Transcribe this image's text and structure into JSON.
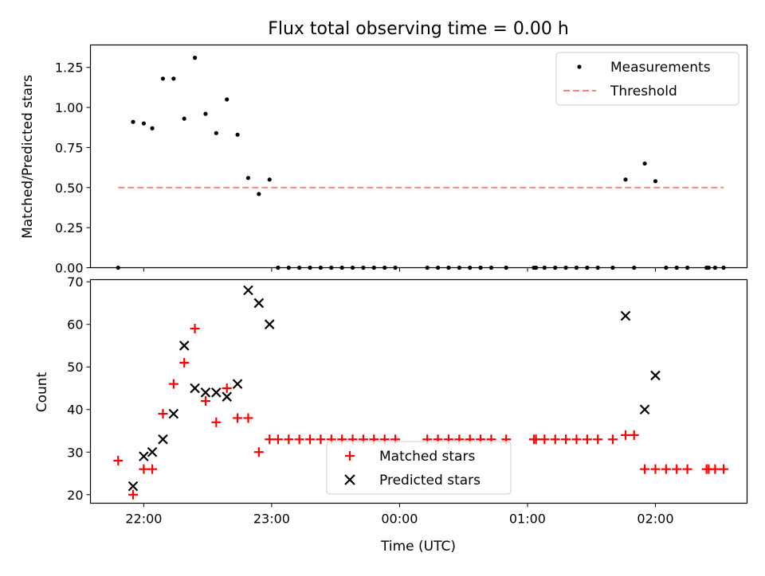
{
  "chart_data": [
    {
      "type": "scatter",
      "title": "Flux total observing time = 0.00 h",
      "xlabel": "",
      "ylabel": "Matched/Predicted stars",
      "xlim": [
        "21:35",
        "02:43"
      ],
      "ylim": [
        0,
        1.39
      ],
      "yticks": [
        "0.00",
        "0.25",
        "0.50",
        "0.75",
        "1.00",
        "1.25"
      ],
      "ytick_values": [
        0,
        0.25,
        0.5,
        0.75,
        1.0,
        1.25
      ],
      "xtick_values": [
        "22:00",
        "23:00",
        "00:00",
        "01:00",
        "02:00"
      ],
      "legend": "top-right",
      "series": [
        {
          "name": "Measurements",
          "marker": "dot",
          "color": "#000000",
          "points": [
            [
              "21:48",
              0.0
            ],
            [
              "21:55",
              0.91
            ],
            [
              "22:00",
              0.9
            ],
            [
              "22:04",
              0.87
            ],
            [
              "22:09",
              1.18
            ],
            [
              "22:14",
              1.18
            ],
            [
              "22:19",
              0.93
            ],
            [
              "22:24",
              1.31
            ],
            [
              "22:29",
              0.96
            ],
            [
              "22:34",
              0.84
            ],
            [
              "22:39",
              1.05
            ],
            [
              "22:44",
              0.83
            ],
            [
              "22:49",
              0.56
            ],
            [
              "22:54",
              0.46
            ],
            [
              "22:59",
              0.55
            ],
            [
              "23:03",
              0.0
            ],
            [
              "23:08",
              0.0
            ],
            [
              "23:13",
              0.0
            ],
            [
              "23:18",
              0.0
            ],
            [
              "23:23",
              0.0
            ],
            [
              "23:28",
              0.0
            ],
            [
              "23:33",
              0.0
            ],
            [
              "23:38",
              0.0
            ],
            [
              "23:43",
              0.0
            ],
            [
              "23:48",
              0.0
            ],
            [
              "23:53",
              0.0
            ],
            [
              "23:58",
              0.0
            ],
            [
              "00:13",
              0.0
            ],
            [
              "00:18",
              0.0
            ],
            [
              "00:23",
              0.0
            ],
            [
              "00:28",
              0.0
            ],
            [
              "00:33",
              0.0
            ],
            [
              "00:38",
              0.0
            ],
            [
              "00:43",
              0.0
            ],
            [
              "00:50",
              0.0
            ],
            [
              "01:03",
              0.0
            ],
            [
              "01:04",
              0.0
            ],
            [
              "01:08",
              0.0
            ],
            [
              "01:13",
              0.0
            ],
            [
              "01:18",
              0.0
            ],
            [
              "01:23",
              0.0
            ],
            [
              "01:28",
              0.0
            ],
            [
              "01:33",
              0.0
            ],
            [
              "01:40",
              0.0
            ],
            [
              "01:46",
              0.55
            ],
            [
              "01:50",
              0.0
            ],
            [
              "01:55",
              0.65
            ],
            [
              "02:00",
              0.54
            ],
            [
              "02:05",
              0.0
            ],
            [
              "02:10",
              0.0
            ],
            [
              "02:15",
              0.0
            ],
            [
              "02:24",
              0.0
            ],
            [
              "02:25",
              0.0
            ],
            [
              "02:28",
              0.0
            ],
            [
              "02:32",
              0.0
            ]
          ]
        },
        {
          "name": "Threshold",
          "marker": "dashed-line",
          "color": "#ff7f7f",
          "points": [
            [
              "21:48",
              0.5
            ],
            [
              "02:32",
              0.5
            ]
          ]
        }
      ]
    },
    {
      "type": "scatter",
      "title": "",
      "xlabel": "Time (UTC)",
      "ylabel": "Count",
      "xlim": [
        "21:35",
        "02:43"
      ],
      "ylim": [
        18,
        70.5
      ],
      "yticks": [
        "20",
        "30",
        "40",
        "50",
        "60",
        "70"
      ],
      "ytick_values": [
        20,
        30,
        40,
        50,
        60,
        70
      ],
      "xticks": [
        "22:00",
        "23:00",
        "00:00",
        "01:00",
        "02:00"
      ],
      "xtick_values": [
        "22:00",
        "23:00",
        "00:00",
        "01:00",
        "02:00"
      ],
      "legend": "bottom-center",
      "series": [
        {
          "name": "Matched stars",
          "marker": "plus",
          "color": "#ff0000",
          "points": [
            [
              "21:48",
              28
            ],
            [
              "21:55",
              20
            ],
            [
              "22:00",
              26
            ],
            [
              "22:04",
              26
            ],
            [
              "22:09",
              39
            ],
            [
              "22:14",
              46
            ],
            [
              "22:19",
              51
            ],
            [
              "22:24",
              59
            ],
            [
              "22:29",
              42
            ],
            [
              "22:34",
              37
            ],
            [
              "22:39",
              45
            ],
            [
              "22:44",
              38
            ],
            [
              "22:49",
              38
            ],
            [
              "22:54",
              30
            ],
            [
              "22:59",
              33
            ],
            [
              "23:03",
              33
            ],
            [
              "23:08",
              33
            ],
            [
              "23:13",
              33
            ],
            [
              "23:18",
              33
            ],
            [
              "23:23",
              33
            ],
            [
              "23:28",
              33
            ],
            [
              "23:33",
              33
            ],
            [
              "23:38",
              33
            ],
            [
              "23:43",
              33
            ],
            [
              "23:48",
              33
            ],
            [
              "23:53",
              33
            ],
            [
              "23:58",
              33
            ],
            [
              "00:13",
              33
            ],
            [
              "00:18",
              33
            ],
            [
              "00:23",
              33
            ],
            [
              "00:28",
              33
            ],
            [
              "00:33",
              33
            ],
            [
              "00:38",
              33
            ],
            [
              "00:43",
              33
            ],
            [
              "00:50",
              33
            ],
            [
              "01:03",
              33
            ],
            [
              "01:04",
              33
            ],
            [
              "01:08",
              33
            ],
            [
              "01:13",
              33
            ],
            [
              "01:18",
              33
            ],
            [
              "01:23",
              33
            ],
            [
              "01:28",
              33
            ],
            [
              "01:33",
              33
            ],
            [
              "01:40",
              33
            ],
            [
              "01:46",
              34
            ],
            [
              "01:50",
              34
            ],
            [
              "01:55",
              26
            ],
            [
              "02:00",
              26
            ],
            [
              "02:05",
              26
            ],
            [
              "02:10",
              26
            ],
            [
              "02:15",
              26
            ],
            [
              "02:24",
              26
            ],
            [
              "02:25",
              26
            ],
            [
              "02:28",
              26
            ],
            [
              "02:32",
              26
            ]
          ]
        },
        {
          "name": "Predicted stars",
          "marker": "x",
          "color": "#000000",
          "points": [
            [
              "21:55",
              22
            ],
            [
              "22:00",
              29
            ],
            [
              "22:04",
              30
            ],
            [
              "22:09",
              33
            ],
            [
              "22:14",
              39
            ],
            [
              "22:19",
              55
            ],
            [
              "22:24",
              45
            ],
            [
              "22:29",
              44
            ],
            [
              "22:34",
              44
            ],
            [
              "22:39",
              43
            ],
            [
              "22:44",
              46
            ],
            [
              "22:49",
              68
            ],
            [
              "22:54",
              65
            ],
            [
              "22:59",
              60
            ],
            [
              "01:46",
              62
            ],
            [
              "01:55",
              40
            ],
            [
              "02:00",
              48
            ]
          ]
        }
      ]
    }
  ]
}
